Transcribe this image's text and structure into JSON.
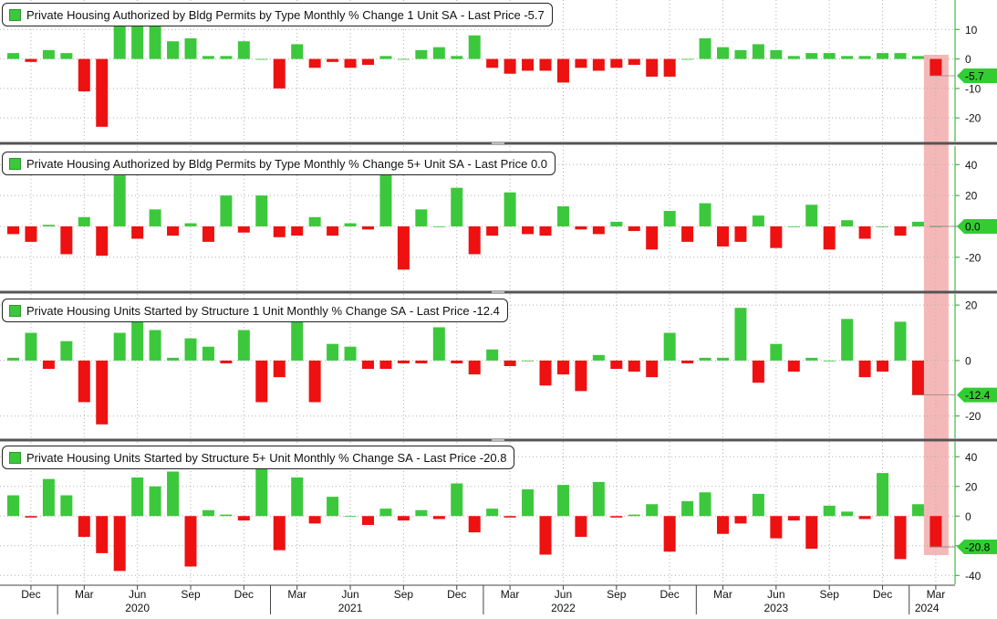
{
  "colors": {
    "positive": "#3cc83c",
    "negative": "#ee1111",
    "highlight": "#f2a0a0",
    "grid": "#b0b0b0",
    "divider": "#555555"
  },
  "x_axis": {
    "month_ticks": [
      {
        "label": "Dec",
        "index": 1
      },
      {
        "label": "Mar",
        "index": 4
      },
      {
        "label": "Jun",
        "index": 7
      },
      {
        "label": "Sep",
        "index": 10
      },
      {
        "label": "Dec",
        "index": 13
      },
      {
        "label": "Mar",
        "index": 16
      },
      {
        "label": "Jun",
        "index": 19
      },
      {
        "label": "Sep",
        "index": 22
      },
      {
        "label": "Dec",
        "index": 25
      },
      {
        "label": "Mar",
        "index": 28
      },
      {
        "label": "Jun",
        "index": 31
      },
      {
        "label": "Sep",
        "index": 34
      },
      {
        "label": "Dec",
        "index": 37
      },
      {
        "label": "Mar",
        "index": 40
      },
      {
        "label": "Jun",
        "index": 43
      },
      {
        "label": "Sep",
        "index": 46
      },
      {
        "label": "Dec",
        "index": 49
      },
      {
        "label": "Mar",
        "index": 52
      }
    ],
    "year_labels": [
      {
        "label": "2020",
        "index": 7
      },
      {
        "label": "2021",
        "index": 19
      },
      {
        "label": "2022",
        "index": 31
      },
      {
        "label": "2023",
        "index": 43
      },
      {
        "label": "2024",
        "index": 51.5
      }
    ]
  },
  "chart_data": [
    {
      "type": "bar",
      "title": "Private Housing Authorized by Bldg Permits by Type Monthly % Change 1 Unit SA",
      "last_price_label": "Last Price",
      "last_value": "-5.7",
      "ylim": [
        -28,
        20
      ],
      "yticks": [
        10,
        0,
        -10,
        -20
      ],
      "values": [
        2,
        -1,
        3,
        2,
        -11,
        -23,
        19,
        12,
        12,
        6,
        7,
        1,
        1,
        6,
        0,
        -10,
        5,
        -3,
        -1,
        -3,
        -2,
        1,
        0,
        3,
        4,
        1,
        8,
        -3,
        -5,
        -4,
        -4,
        -8,
        -3,
        -4,
        -3,
        -2,
        -6,
        -6,
        0,
        7,
        4,
        3,
        5,
        3,
        1,
        2,
        2,
        1,
        1,
        2,
        2,
        1,
        -5.7
      ]
    },
    {
      "type": "bar",
      "title": "Private Housing Authorized by Bldg Permits by Type Monthly % Change 5+ Unit SA",
      "last_price_label": "Last Price",
      "last_value": "0.0",
      "ylim": [
        -42,
        52
      ],
      "yticks": [
        40,
        20,
        0,
        -20
      ],
      "values": [
        -5,
        -10,
        1,
        -18,
        6,
        -19,
        33,
        -8,
        11,
        -6,
        2,
        -10,
        20,
        -4,
        20,
        -7,
        -6,
        6,
        -6,
        2,
        -2,
        35,
        -28,
        11,
        0,
        25,
        -18,
        -6,
        22,
        -5,
        -6,
        13,
        -2,
        -5,
        3,
        -3,
        -15,
        10,
        -10,
        15,
        -13,
        -10,
        7,
        -14,
        0,
        14,
        -15,
        4,
        -8,
        0,
        -6,
        3,
        0.0
      ]
    },
    {
      "type": "bar",
      "title": "Private Housing Units Started by Structure 1 Unit Monthly % Change SA",
      "last_price_label": "Last Price",
      "last_value": "-12.4",
      "ylim": [
        -28,
        24
      ],
      "yticks": [
        20,
        0,
        -20
      ],
      "values": [
        1,
        10,
        -3,
        7,
        -15,
        -23,
        10,
        14,
        11,
        1,
        8,
        5,
        -1,
        11,
        -15,
        -6,
        14,
        -15,
        6,
        5,
        -3,
        -3,
        -1,
        -1,
        12,
        -1,
        -5,
        4,
        -2,
        0,
        -9,
        -5,
        -11,
        2,
        -3,
        -4,
        -6,
        10,
        -1,
        1,
        1,
        19,
        -8,
        6,
        -4,
        1,
        0,
        15,
        -6,
        -4,
        14,
        -12.4
      ]
    },
    {
      "type": "bar",
      "title": "Private Housing Units Started by Structure 5+ Unit Monthly % Change SA",
      "last_price_label": "Last Price",
      "last_value": "-20.8",
      "ylim": [
        -46,
        50
      ],
      "yticks": [
        40,
        20,
        0,
        -20,
        -40
      ],
      "values": [
        14,
        -1,
        25,
        14,
        -14,
        -25,
        -37,
        26,
        20,
        30,
        -34,
        4,
        1,
        -3,
        37,
        -23,
        26,
        -5,
        13,
        0,
        -6,
        5,
        -3,
        4,
        -2,
        22,
        -11,
        5,
        -1,
        18,
        -26,
        21,
        -14,
        23,
        -1,
        1,
        8,
        -24,
        10,
        16,
        -12,
        -5,
        15,
        -15,
        -3,
        -22,
        7,
        3,
        -2,
        29,
        -29,
        8,
        -20.8
      ]
    }
  ]
}
